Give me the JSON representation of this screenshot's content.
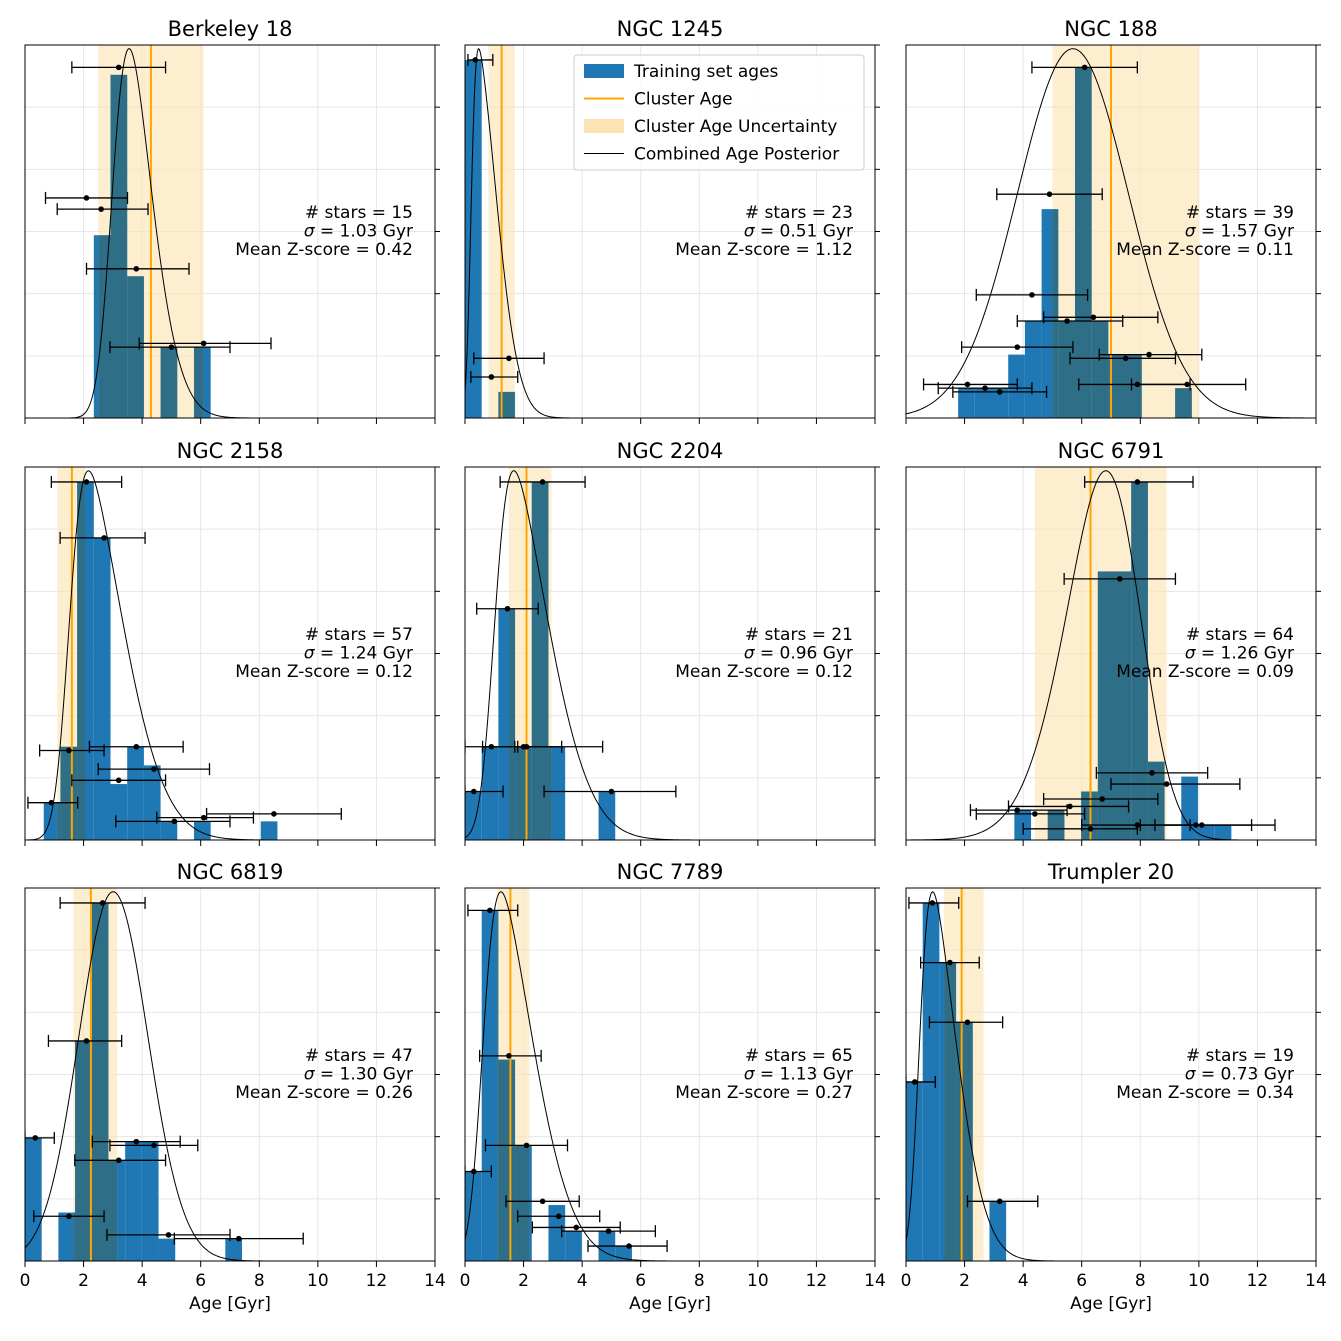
{
  "chart_data": {
    "type": "histogram",
    "x_label": "Age [Gyr]",
    "x_ticks": [
      "0",
      "2",
      "4",
      "6",
      "8",
      "10",
      "12",
      "14"
    ],
    "xlim": [
      0,
      14
    ],
    "legend": {
      "position": "upper-right of NGC 1245 panel",
      "items": {
        "training": "Training set ages",
        "cluster_age": "Cluster Age",
        "uncertainty": "Cluster Age Uncertainty",
        "posterior": "Combined Age Posterior"
      }
    },
    "colors": {
      "bar": "#1f77b4",
      "bar_overlap": "#2e6e86",
      "cluster_age": "#ffa500",
      "uncertainty_band": "#fce3b3",
      "posterior": "#000000",
      "errorbar": "#000000",
      "grid": "#e6e6e6"
    },
    "panels": [
      {
        "title": "Berkeley 18",
        "stars_text": "# stars = 15",
        "sigma_text": "σ = 1.03 Gyr",
        "zscore_text": "Mean Z-score = 0.42",
        "cluster_age": 4.3,
        "age_low": 2.5,
        "age_high": 6.1,
        "post_mu": 3.0,
        "post_sig": 1.1,
        "post_skew": 2.5,
        "bin_width": 0.57,
        "bars": [
          [
            1.78,
            0.0
          ],
          [
            2.35,
            0.49
          ],
          [
            2.92,
            0.92
          ],
          [
            3.49,
            0.38
          ],
          [
            4.06,
            0.0
          ],
          [
            4.63,
            0.19
          ],
          [
            5.2,
            0.0
          ],
          [
            5.77,
            0.19
          ]
        ],
        "ymax": 1.0,
        "points": [
          [
            3.2,
            0.94,
            1.6,
            4.8
          ],
          [
            2.1,
            0.59,
            0.7,
            3.5
          ],
          [
            2.6,
            0.56,
            1.1,
            4.2
          ],
          [
            3.8,
            0.4,
            2.1,
            5.6
          ],
          [
            5.0,
            0.19,
            2.9,
            7.0
          ],
          [
            6.1,
            0.2,
            3.9,
            8.4
          ]
        ]
      },
      {
        "title": "NGC 1245",
        "stars_text": "# stars = 23",
        "sigma_text": "σ = 0.51 Gyr",
        "zscore_text": "Mean Z-score = 1.12",
        "cluster_age": 1.25,
        "age_low": 0.8,
        "age_high": 1.7,
        "post_mu": 0.2,
        "post_sig": 0.8,
        "post_skew": 6,
        "bin_width": 0.57,
        "bars": [
          [
            0.0,
            0.96
          ],
          [
            0.57,
            0.0
          ],
          [
            1.14,
            0.07
          ],
          [
            1.71,
            0.0
          ]
        ],
        "ymax": 1.0,
        "points": [
          [
            0.35,
            0.96,
            0.1,
            0.95
          ],
          [
            1.5,
            0.16,
            0.3,
            2.7
          ],
          [
            0.9,
            0.11,
            0.2,
            1.8
          ]
        ]
      },
      {
        "title": "NGC 188",
        "stars_text": "# stars = 39",
        "sigma_text": "σ = 1.57 Gyr",
        "zscore_text": "Mean Z-score = 0.11",
        "cluster_age": 7.0,
        "age_low": 5.0,
        "age_high": 10.0,
        "post_mu": 5.7,
        "post_sig": 1.9,
        "post_skew": 0,
        "bin_width": 0.57,
        "bars": [
          [
            1.78,
            0.08
          ],
          [
            2.35,
            0.08
          ],
          [
            2.92,
            0.08
          ],
          [
            3.49,
            0.17
          ],
          [
            4.06,
            0.26
          ],
          [
            4.63,
            0.56
          ],
          [
            5.2,
            0.26
          ],
          [
            5.77,
            0.94
          ],
          [
            6.34,
            0.26
          ],
          [
            6.91,
            0.17
          ],
          [
            7.48,
            0.17
          ],
          [
            8.05,
            0.0
          ],
          [
            8.62,
            0.0
          ],
          [
            9.19,
            0.08
          ]
        ],
        "ymax": 1.0,
        "points": [
          [
            6.1,
            0.94,
            4.3,
            7.9
          ],
          [
            4.9,
            0.6,
            3.1,
            6.7
          ],
          [
            4.3,
            0.33,
            2.4,
            6.2
          ],
          [
            5.5,
            0.26,
            3.8,
            7.4
          ],
          [
            6.4,
            0.27,
            4.7,
            8.6
          ],
          [
            3.8,
            0.19,
            1.9,
            5.7
          ],
          [
            7.5,
            0.16,
            5.6,
            9.2
          ],
          [
            8.3,
            0.17,
            6.6,
            10.1
          ],
          [
            2.1,
            0.09,
            0.6,
            3.8
          ],
          [
            2.7,
            0.08,
            1.1,
            4.3
          ],
          [
            3.2,
            0.07,
            1.6,
            4.8
          ],
          [
            7.9,
            0.09,
            5.9,
            9.7
          ],
          [
            9.6,
            0.09,
            7.7,
            11.6
          ]
        ]
      },
      {
        "title": "NGC 2158",
        "stars_text": "# stars = 57",
        "sigma_text": "σ = 1.24 Gyr",
        "zscore_text": "Mean Z-score = 0.12",
        "cluster_age": 1.6,
        "age_low": 1.1,
        "age_high": 2.05,
        "post_mu": 1.5,
        "post_sig": 1.6,
        "post_skew": 4,
        "bin_width": 0.57,
        "bars": [
          [
            0.64,
            0.1
          ],
          [
            1.21,
            0.25
          ],
          [
            1.78,
            0.96
          ],
          [
            2.35,
            0.81
          ],
          [
            2.92,
            0.15
          ],
          [
            3.49,
            0.25
          ],
          [
            4.06,
            0.2
          ],
          [
            4.63,
            0.05
          ],
          [
            5.2,
            0.0
          ],
          [
            5.77,
            0.05
          ],
          [
            6.34,
            0.0
          ],
          [
            6.91,
            0.0
          ],
          [
            7.48,
            0.0
          ],
          [
            8.05,
            0.05
          ]
        ],
        "ymax": 1.0,
        "points": [
          [
            2.1,
            0.96,
            0.9,
            3.3
          ],
          [
            2.7,
            0.81,
            1.2,
            4.1
          ],
          [
            1.5,
            0.24,
            0.5,
            2.7
          ],
          [
            3.8,
            0.25,
            2.2,
            5.4
          ],
          [
            4.4,
            0.19,
            2.5,
            6.3
          ],
          [
            3.2,
            0.16,
            1.6,
            4.8
          ],
          [
            0.9,
            0.1,
            0.1,
            1.8
          ],
          [
            5.1,
            0.05,
            3.1,
            7.0
          ],
          [
            6.1,
            0.06,
            4.5,
            7.8
          ],
          [
            8.5,
            0.07,
            6.2,
            10.8
          ]
        ]
      },
      {
        "title": "NGC 2204",
        "stars_text": "# stars = 21",
        "sigma_text": "σ = 0.96 Gyr",
        "zscore_text": "Mean Z-score = 0.12",
        "cluster_age": 2.1,
        "age_low": 1.5,
        "age_high": 2.95,
        "post_mu": 1.0,
        "post_sig": 1.6,
        "post_skew": 4,
        "bin_width": 0.57,
        "bars": [
          [
            0.0,
            0.13
          ],
          [
            0.57,
            0.25
          ],
          [
            1.14,
            0.62
          ],
          [
            1.71,
            0.25
          ],
          [
            2.28,
            0.96
          ],
          [
            2.85,
            0.25
          ],
          [
            3.42,
            0.0
          ],
          [
            3.99,
            0.0
          ],
          [
            4.56,
            0.13
          ]
        ],
        "ymax": 1.0,
        "points": [
          [
            2.65,
            0.96,
            1.2,
            4.1
          ],
          [
            1.45,
            0.62,
            0.4,
            2.5
          ],
          [
            0.9,
            0.25,
            0.0,
            1.8
          ],
          [
            2.0,
            0.25,
            0.6,
            3.3
          ],
          [
            2.1,
            0.25,
            1.7,
            4.7
          ],
          [
            0.3,
            0.13,
            0.0,
            1.3
          ],
          [
            5.0,
            0.13,
            2.7,
            7.2
          ]
        ]
      },
      {
        "title": "NGC 6791",
        "stars_text": "# stars = 64",
        "sigma_text": "σ = 1.26 Gyr",
        "zscore_text": "Mean Z-score = 0.09",
        "cluster_age": 6.3,
        "age_low": 4.4,
        "age_high": 8.9,
        "post_mu": 7.8,
        "post_sig": 1.8,
        "post_skew": -1.6,
        "bin_width": 0.57,
        "bars": [
          [
            3.7,
            0.08
          ],
          [
            4.27,
            0.0
          ],
          [
            4.84,
            0.08
          ],
          [
            5.41,
            0.0
          ],
          [
            5.98,
            0.13
          ],
          [
            6.55,
            0.72
          ],
          [
            7.12,
            0.72
          ],
          [
            7.69,
            0.96
          ],
          [
            8.26,
            0.21
          ],
          [
            8.83,
            0.0
          ],
          [
            9.4,
            0.17
          ],
          [
            9.97,
            0.04
          ],
          [
            10.54,
            0.04
          ]
        ],
        "ymax": 1.0,
        "points": [
          [
            7.9,
            0.96,
            6.1,
            9.8
          ],
          [
            7.3,
            0.7,
            5.4,
            9.2
          ],
          [
            8.4,
            0.18,
            6.5,
            10.3
          ],
          [
            8.9,
            0.15,
            7.0,
            11.4
          ],
          [
            6.7,
            0.11,
            4.7,
            8.6
          ],
          [
            5.6,
            0.09,
            3.5,
            7.6
          ],
          [
            3.8,
            0.08,
            2.2,
            5.5
          ],
          [
            4.4,
            0.07,
            2.4,
            6.1
          ],
          [
            6.3,
            0.03,
            4.0,
            7.9
          ],
          [
            7.9,
            0.04,
            6.0,
            9.7
          ],
          [
            9.9,
            0.04,
            8.0,
            11.8
          ],
          [
            10.1,
            0.04,
            8.5,
            12.6
          ]
        ]
      },
      {
        "title": "NGC 6819",
        "stars_text": "# stars = 47",
        "sigma_text": "σ = 1.30 Gyr",
        "zscore_text": "Mean Z-score = 0.26",
        "cluster_age": 2.25,
        "age_low": 1.65,
        "age_high": 3.15,
        "post_mu": 2.5,
        "post_sig": 1.3,
        "post_skew": 0.6,
        "bin_width": 0.57,
        "bars": [
          [
            0.0,
            0.33
          ],
          [
            0.57,
            0.0
          ],
          [
            1.14,
            0.13
          ],
          [
            1.71,
            0.59
          ],
          [
            2.28,
            0.96
          ],
          [
            2.85,
            0.27
          ],
          [
            3.42,
            0.32
          ],
          [
            3.99,
            0.32
          ],
          [
            4.56,
            0.06
          ],
          [
            5.13,
            0.0
          ],
          [
            5.7,
            0.0
          ],
          [
            6.27,
            0.0
          ],
          [
            6.84,
            0.06
          ]
        ],
        "ymax": 1.0,
        "points": [
          [
            2.65,
            0.96,
            1.2,
            4.1
          ],
          [
            2.1,
            0.59,
            0.8,
            3.3
          ],
          [
            0.35,
            0.33,
            0.0,
            1.0
          ],
          [
            3.8,
            0.32,
            2.3,
            5.3
          ],
          [
            4.4,
            0.31,
            2.9,
            5.9
          ],
          [
            3.2,
            0.27,
            1.7,
            4.8
          ],
          [
            1.5,
            0.12,
            0.3,
            2.7
          ],
          [
            4.9,
            0.07,
            2.8,
            7.0
          ],
          [
            7.3,
            0.06,
            5.1,
            9.5
          ]
        ]
      },
      {
        "title": "NGC 7789",
        "stars_text": "# stars = 65",
        "sigma_text": "σ = 1.13 Gyr",
        "zscore_text": "Mean Z-score = 0.27",
        "cluster_age": 1.55,
        "age_low": 1.1,
        "age_high": 2.2,
        "post_mu": 0.6,
        "post_sig": 1.5,
        "post_skew": 4,
        "bin_width": 0.57,
        "bars": [
          [
            0.0,
            0.24
          ],
          [
            0.57,
            0.94
          ],
          [
            1.14,
            0.54
          ],
          [
            1.71,
            0.31
          ],
          [
            2.28,
            0.0
          ],
          [
            2.85,
            0.15
          ],
          [
            3.42,
            0.08
          ],
          [
            3.99,
            0.0
          ],
          [
            4.56,
            0.08
          ],
          [
            5.13,
            0.04
          ]
        ],
        "ymax": 1.0,
        "points": [
          [
            0.85,
            0.94,
            0.1,
            1.8
          ],
          [
            1.5,
            0.55,
            0.5,
            2.6
          ],
          [
            2.1,
            0.31,
            0.7,
            3.5
          ],
          [
            0.3,
            0.24,
            0.0,
            0.9
          ],
          [
            2.65,
            0.16,
            1.4,
            3.9
          ],
          [
            3.2,
            0.12,
            1.8,
            4.6
          ],
          [
            3.8,
            0.09,
            2.3,
            5.3
          ],
          [
            4.9,
            0.08,
            3.3,
            6.5
          ],
          [
            5.6,
            0.04,
            4.2,
            6.9
          ]
        ]
      },
      {
        "title": "Trumpler 20",
        "stars_text": "# stars = 19",
        "sigma_text": "σ = 0.73 Gyr",
        "zscore_text": "Mean Z-score = 0.34",
        "cluster_age": 1.9,
        "age_low": 1.3,
        "age_high": 2.65,
        "post_mu": 0.45,
        "post_sig": 1.1,
        "post_skew": 4,
        "bin_width": 0.57,
        "bars": [
          [
            0.0,
            0.48
          ],
          [
            0.57,
            0.96
          ],
          [
            1.14,
            0.8
          ],
          [
            1.71,
            0.64
          ],
          [
            2.28,
            0.0
          ],
          [
            2.85,
            0.16
          ]
        ],
        "ymax": 1.0,
        "points": [
          [
            0.9,
            0.96,
            0.1,
            1.8
          ],
          [
            1.5,
            0.8,
            0.5,
            2.5
          ],
          [
            2.1,
            0.64,
            0.8,
            3.3
          ],
          [
            0.3,
            0.48,
            0.0,
            1.0
          ],
          [
            3.2,
            0.16,
            2.1,
            4.5
          ]
        ]
      }
    ]
  }
}
